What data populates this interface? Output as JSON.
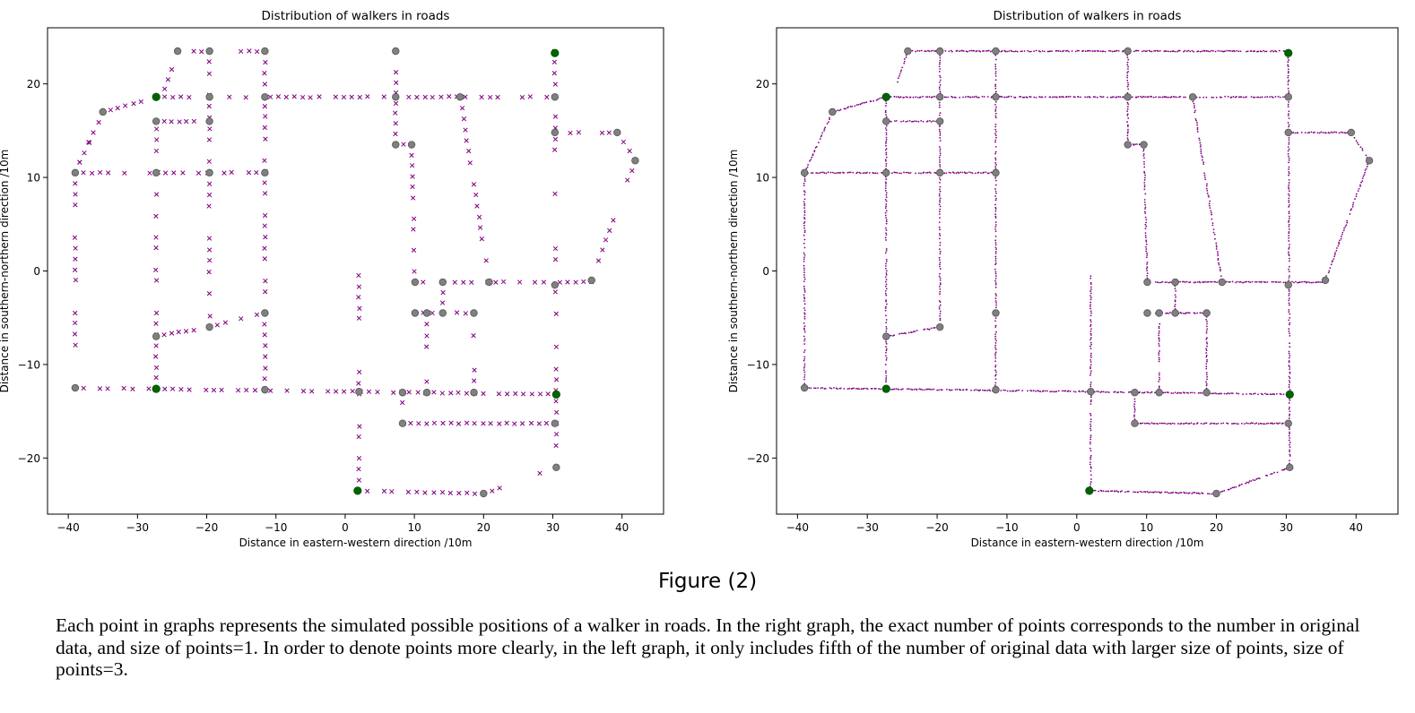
{
  "figure_label": "Figure (2)",
  "caption": "Each point in graphs represents the simulated possible positions of a walker in roads. In the right graph, the exact number of points corresponds to the number in original data, and size of points=1. In order to denote points more clearly, in the left graph, it only includes fifth of the number of original data with larger size of points, size of points=3.",
  "colors": {
    "walker": "#800080",
    "node": "#808080",
    "entrance": "#006400",
    "node_edge": "#555555"
  },
  "chart_data": [
    {
      "type": "scatter",
      "title": "Distribution of walkers in roads",
      "xlabel": "Distance in eastern-western direction  /10m",
      "ylabel": "Distance in southern-northern direction /10m",
      "xlim": [
        -43,
        46
      ],
      "ylim": [
        -26,
        26
      ],
      "xticks": [
        -40,
        -30,
        -20,
        -10,
        0,
        10,
        20,
        30,
        40
      ],
      "yticks": [
        -20,
        -10,
        0,
        10,
        20
      ],
      "marker": "x",
      "point_size": 3,
      "grid": false,
      "roads": [
        [
          [
            -39,
            -12.5
          ],
          [
            30.5,
            -13.2
          ]
        ],
        [
          [
            -39,
            -12.5
          ],
          [
            -39,
            10.5
          ]
        ],
        [
          [
            -39,
            10.5
          ],
          [
            -35,
            17
          ]
        ],
        [
          [
            -35,
            17
          ],
          [
            -27.3,
            18.6
          ]
        ],
        [
          [
            -27.3,
            18.6
          ],
          [
            30.3,
            18.6
          ]
        ],
        [
          [
            -27.3,
            18.6
          ],
          [
            -27.3,
            -12.6
          ]
        ],
        [
          [
            -27.3,
            16
          ],
          [
            -19.6,
            16
          ]
        ],
        [
          [
            -19.6,
            23.5
          ],
          [
            -19.6,
            -6
          ]
        ],
        [
          [
            -39,
            10.5
          ],
          [
            -11.6,
            10.5
          ]
        ],
        [
          [
            -11.6,
            23.5
          ],
          [
            -11.6,
            -12.7
          ]
        ],
        [
          [
            -24.2,
            23.5
          ],
          [
            -11.6,
            23.5
          ]
        ],
        [
          [
            7.3,
            23.5
          ],
          [
            7.3,
            13.5
          ]
        ],
        [
          [
            7.3,
            13.5
          ],
          [
            9.6,
            13.5
          ]
        ],
        [
          [
            9.6,
            13.5
          ],
          [
            10.1,
            -1.2
          ]
        ],
        [
          [
            30.3,
            23.5
          ],
          [
            30.5,
            -21
          ]
        ],
        [
          [
            30.3,
            14.8
          ],
          [
            39.3,
            14.8
          ]
        ],
        [
          [
            39.3,
            14.8
          ],
          [
            41.9,
            11.8
          ]
        ],
        [
          [
            41.9,
            11.8
          ],
          [
            35.6,
            -1
          ]
        ],
        [
          [
            16.6,
            18.6
          ],
          [
            20.8,
            -1.2
          ]
        ],
        [
          [
            10.1,
            -1.2
          ],
          [
            35.6,
            -1.2
          ]
        ],
        [
          [
            14.1,
            -1.2
          ],
          [
            14.1,
            -4.5
          ]
        ],
        [
          [
            10.1,
            -4.5
          ],
          [
            18.6,
            -4.5
          ]
        ],
        [
          [
            11.8,
            -4.5
          ],
          [
            11.8,
            -13
          ]
        ],
        [
          [
            18.6,
            -4.5
          ],
          [
            18.6,
            -13
          ]
        ],
        [
          [
            8.3,
            -13
          ],
          [
            8.3,
            -16.3
          ]
        ],
        [
          [
            8.3,
            -16.3
          ],
          [
            30.3,
            -16.3
          ]
        ],
        [
          [
            2,
            -0.5
          ],
          [
            2,
            -23.5
          ]
        ],
        [
          [
            2,
            -23.5
          ],
          [
            20,
            -23.8
          ]
        ],
        [
          [
            20,
            -23.8
          ],
          [
            30.5,
            -21
          ]
        ],
        [
          [
            -27.3,
            -7
          ],
          [
            -19.6,
            -6
          ]
        ],
        [
          [
            -19.6,
            -6
          ],
          [
            -11.6,
            -4.5
          ]
        ],
        [
          [
            -26,
            19.5
          ],
          [
            -24.2,
            23.5
          ]
        ],
        [
          [
            -35,
            17
          ],
          [
            -39,
            10.5
          ]
        ]
      ],
      "nodes": [
        [
          -24.2,
          23.5
        ],
        [
          -19.6,
          23.5
        ],
        [
          -11.6,
          23.5
        ],
        [
          7.3,
          23.5
        ],
        [
          -35,
          17
        ],
        [
          -19.6,
          18.6
        ],
        [
          -11.6,
          18.6
        ],
        [
          7.3,
          18.6
        ],
        [
          16.6,
          18.6
        ],
        [
          30.3,
          18.6
        ],
        [
          -27.3,
          16
        ],
        [
          -19.6,
          16
        ],
        [
          30.3,
          14.8
        ],
        [
          39.3,
          14.8
        ],
        [
          7.3,
          13.5
        ],
        [
          9.6,
          13.5
        ],
        [
          41.9,
          11.8
        ],
        [
          -39,
          10.5
        ],
        [
          -27.3,
          10.5
        ],
        [
          -19.6,
          10.5
        ],
        [
          -11.6,
          10.5
        ],
        [
          10.1,
          -1.2
        ],
        [
          14.1,
          -1.2
        ],
        [
          20.8,
          -1.2
        ],
        [
          30.3,
          -1.5
        ],
        [
          35.6,
          -1
        ],
        [
          10.1,
          -4.5
        ],
        [
          11.8,
          -4.5
        ],
        [
          14.1,
          -4.5
        ],
        [
          18.6,
          -4.5
        ],
        [
          -11.6,
          -4.5
        ],
        [
          -19.6,
          -6
        ],
        [
          -27.3,
          -7
        ],
        [
          -39,
          -12.5
        ],
        [
          -11.6,
          -12.7
        ],
        [
          2,
          -12.9
        ],
        [
          8.3,
          -13
        ],
        [
          11.8,
          -13
        ],
        [
          18.6,
          -13
        ],
        [
          8.3,
          -16.3
        ],
        [
          30.3,
          -16.3
        ],
        [
          30.5,
          -21
        ],
        [
          20,
          -23.8
        ]
      ],
      "entrances": [
        [
          30.3,
          23.3
        ],
        [
          -27.3,
          18.6
        ],
        [
          -27.3,
          -12.6
        ],
        [
          30.5,
          -13.2
        ],
        [
          1.8,
          -23.5
        ]
      ]
    },
    {
      "type": "scatter",
      "title": "Distribution of walkers in roads",
      "xlabel": "Distance in eastern-western direction  /10m",
      "ylabel": "Distance in southern-northern direction /10m",
      "xlim": [
        -43,
        46
      ],
      "ylim": [
        -26,
        26
      ],
      "xticks": [
        -40,
        -30,
        -20,
        -10,
        0,
        10,
        20,
        30,
        40
      ],
      "yticks": [
        -20,
        -10,
        0,
        10,
        20
      ],
      "marker": "dot",
      "point_size": 1,
      "grid": false,
      "roads": [
        [
          [
            -39,
            -12.5
          ],
          [
            30.5,
            -13.2
          ]
        ],
        [
          [
            -39,
            -12.5
          ],
          [
            -39,
            10.5
          ]
        ],
        [
          [
            -39,
            10.5
          ],
          [
            -35,
            17
          ]
        ],
        [
          [
            -35,
            17
          ],
          [
            -27.3,
            18.6
          ]
        ],
        [
          [
            -27.3,
            18.6
          ],
          [
            30.3,
            18.6
          ]
        ],
        [
          [
            -27.3,
            18.6
          ],
          [
            -27.3,
            -12.6
          ]
        ],
        [
          [
            -27.3,
            16
          ],
          [
            -19.6,
            16
          ]
        ],
        [
          [
            -19.6,
            23.5
          ],
          [
            -19.6,
            -6
          ]
        ],
        [
          [
            -39,
            10.5
          ],
          [
            -11.6,
            10.5
          ]
        ],
        [
          [
            -11.6,
            23.5
          ],
          [
            -11.6,
            -12.7
          ]
        ],
        [
          [
            -24.2,
            23.5
          ],
          [
            -11.6,
            23.5
          ]
        ],
        [
          [
            -11.6,
            23.5
          ],
          [
            30.3,
            23.5
          ]
        ],
        [
          [
            7.3,
            23.5
          ],
          [
            7.3,
            13.5
          ]
        ],
        [
          [
            7.3,
            13.5
          ],
          [
            9.6,
            13.5
          ]
        ],
        [
          [
            9.6,
            13.5
          ],
          [
            10.1,
            -1.2
          ]
        ],
        [
          [
            30.3,
            23.5
          ],
          [
            30.5,
            -21
          ]
        ],
        [
          [
            30.3,
            14.8
          ],
          [
            39.3,
            14.8
          ]
        ],
        [
          [
            39.3,
            14.8
          ],
          [
            41.9,
            11.8
          ]
        ],
        [
          [
            41.9,
            11.8
          ],
          [
            35.6,
            -1
          ]
        ],
        [
          [
            16.6,
            18.6
          ],
          [
            20.8,
            -1.2
          ]
        ],
        [
          [
            10.1,
            -1.2
          ],
          [
            35.6,
            -1.2
          ]
        ],
        [
          [
            14.1,
            -1.2
          ],
          [
            14.1,
            -4.5
          ]
        ],
        [
          [
            10.1,
            -4.5
          ],
          [
            18.6,
            -4.5
          ]
        ],
        [
          [
            11.8,
            -4.5
          ],
          [
            11.8,
            -13
          ]
        ],
        [
          [
            18.6,
            -4.5
          ],
          [
            18.6,
            -13
          ]
        ],
        [
          [
            8.3,
            -13
          ],
          [
            8.3,
            -16.3
          ]
        ],
        [
          [
            8.3,
            -16.3
          ],
          [
            30.3,
            -16.3
          ]
        ],
        [
          [
            2,
            -0.5
          ],
          [
            2,
            -23.5
          ]
        ],
        [
          [
            2,
            -23.5
          ],
          [
            20,
            -23.8
          ]
        ],
        [
          [
            20,
            -23.8
          ],
          [
            30.5,
            -21
          ]
        ],
        [
          [
            -27.3,
            -7
          ],
          [
            -19.6,
            -6
          ]
        ],
        [
          [
            -26,
            19.5
          ],
          [
            -24.2,
            23.5
          ]
        ]
      ],
      "nodes": [
        [
          -24.2,
          23.5
        ],
        [
          -19.6,
          23.5
        ],
        [
          -11.6,
          23.5
        ],
        [
          7.3,
          23.5
        ],
        [
          -35,
          17
        ],
        [
          -19.6,
          18.6
        ],
        [
          -11.6,
          18.6
        ],
        [
          7.3,
          18.6
        ],
        [
          16.6,
          18.6
        ],
        [
          30.3,
          18.6
        ],
        [
          -27.3,
          16
        ],
        [
          -19.6,
          16
        ],
        [
          30.3,
          14.8
        ],
        [
          39.3,
          14.8
        ],
        [
          7.3,
          13.5
        ],
        [
          9.6,
          13.5
        ],
        [
          41.9,
          11.8
        ],
        [
          -39,
          10.5
        ],
        [
          -27.3,
          10.5
        ],
        [
          -19.6,
          10.5
        ],
        [
          -11.6,
          10.5
        ],
        [
          10.1,
          -1.2
        ],
        [
          14.1,
          -1.2
        ],
        [
          20.8,
          -1.2
        ],
        [
          30.3,
          -1.5
        ],
        [
          35.6,
          -1
        ],
        [
          10.1,
          -4.5
        ],
        [
          11.8,
          -4.5
        ],
        [
          14.1,
          -4.5
        ],
        [
          18.6,
          -4.5
        ],
        [
          -11.6,
          -4.5
        ],
        [
          -19.6,
          -6
        ],
        [
          -27.3,
          -7
        ],
        [
          -39,
          -12.5
        ],
        [
          -11.6,
          -12.7
        ],
        [
          2,
          -12.9
        ],
        [
          8.3,
          -13
        ],
        [
          11.8,
          -13
        ],
        [
          18.6,
          -13
        ],
        [
          8.3,
          -16.3
        ],
        [
          30.3,
          -16.3
        ],
        [
          30.5,
          -21
        ],
        [
          20,
          -23.8
        ]
      ],
      "entrances": [
        [
          30.3,
          23.3
        ],
        [
          -27.3,
          18.6
        ],
        [
          -27.3,
          -12.6
        ],
        [
          30.5,
          -13.2
        ],
        [
          1.8,
          -23.5
        ]
      ]
    }
  ]
}
